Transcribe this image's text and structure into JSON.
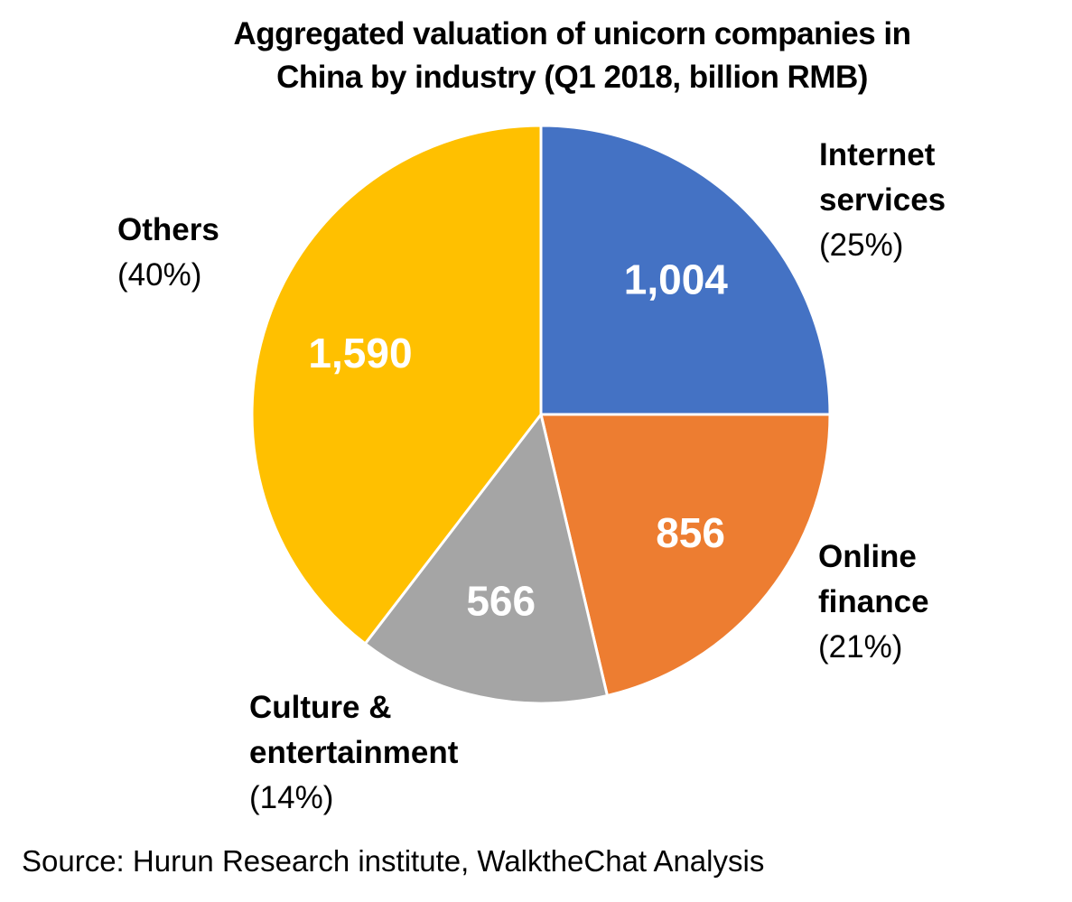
{
  "chart_data": {
    "type": "pie",
    "title": "Aggregated valuation of unicorn companies in China by industry (Q1 2018, billion RMB)",
    "title_lines": [
      "Aggregated valuation of unicorn companies in",
      "China by industry (Q1 2018, billion RMB)"
    ],
    "start_angle_deg": 0,
    "direction": "clockwise",
    "slices": [
      {
        "name_lines": [
          "Internet",
          "services"
        ],
        "value": 1004,
        "value_label": "1,004",
        "percent_label": "(25%)",
        "color": "#4472C4"
      },
      {
        "name_lines": [
          "Online",
          "finance"
        ],
        "value": 856,
        "value_label": "856",
        "percent_label": "(21%)",
        "color": "#ED7D31"
      },
      {
        "name_lines": [
          "Culture &",
          "entertainment"
        ],
        "value": 566,
        "value_label": "566",
        "percent_label": "(14%)",
        "color": "#A5A5A5"
      },
      {
        "name_lines": [
          "Others"
        ],
        "value": 1590,
        "value_label": "1,590",
        "percent_label": "(40%)",
        "color": "#FFC000"
      }
    ],
    "source": "Source: Hurun Research institute, WalktheChat Analysis"
  }
}
